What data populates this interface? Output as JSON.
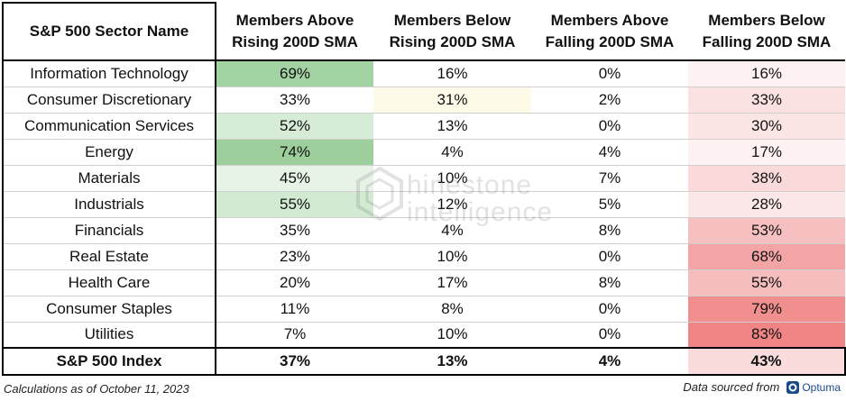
{
  "table": {
    "headers": [
      "S&P 500 Sector Name",
      "Members Above Rising 200D SMA",
      "Members Below Rising 200D SMA",
      "Members Above Falling 200D SMA",
      "Members Below Falling 200D SMA"
    ],
    "rows": [
      {
        "sector": "Information Technology",
        "v": [
          "69%",
          "16%",
          "0%",
          "16%"
        ],
        "bg": [
          "#a3d3a3",
          "#ffffff",
          "#ffffff",
          "#fdf2f2"
        ]
      },
      {
        "sector": "Consumer Discretionary",
        "v": [
          "33%",
          "31%",
          "2%",
          "33%"
        ],
        "bg": [
          "#ffffff",
          "#fdfbe8",
          "#ffffff",
          "#fbe1e1"
        ]
      },
      {
        "sector": "Communication Services",
        "v": [
          "52%",
          "13%",
          "0%",
          "30%"
        ],
        "bg": [
          "#d7ecd7",
          "#ffffff",
          "#ffffff",
          "#fbe5e5"
        ]
      },
      {
        "sector": "Energy",
        "v": [
          "74%",
          "4%",
          "4%",
          "17%"
        ],
        "bg": [
          "#9ccf9c",
          "#ffffff",
          "#ffffff",
          "#fdf1f1"
        ]
      },
      {
        "sector": "Materials",
        "v": [
          "45%",
          "10%",
          "7%",
          "38%"
        ],
        "bg": [
          "#e7f3e7",
          "#ffffff",
          "#ffffff",
          "#f9d9d9"
        ]
      },
      {
        "sector": "Industrials",
        "v": [
          "55%",
          "12%",
          "5%",
          "28%"
        ],
        "bg": [
          "#d2ead2",
          "#ffffff",
          "#ffffff",
          "#fbe7e7"
        ]
      },
      {
        "sector": "Financials",
        "v": [
          "35%",
          "4%",
          "8%",
          "53%"
        ],
        "bg": [
          "#ffffff",
          "#ffffff",
          "#ffffff",
          "#f6c0c0"
        ]
      },
      {
        "sector": "Real Estate",
        "v": [
          "23%",
          "10%",
          "0%",
          "68%"
        ],
        "bg": [
          "#ffffff",
          "#ffffff",
          "#ffffff",
          "#f3a5a5"
        ]
      },
      {
        "sector": "Health Care",
        "v": [
          "20%",
          "17%",
          "8%",
          "55%"
        ],
        "bg": [
          "#ffffff",
          "#ffffff",
          "#ffffff",
          "#f5bdbd"
        ]
      },
      {
        "sector": "Consumer Staples",
        "v": [
          "11%",
          "8%",
          "0%",
          "79%"
        ],
        "bg": [
          "#ffffff",
          "#ffffff",
          "#ffffff",
          "#f18f8f"
        ]
      },
      {
        "sector": "Utilities",
        "v": [
          "7%",
          "10%",
          "0%",
          "83%"
        ],
        "bg": [
          "#ffffff",
          "#ffffff",
          "#ffffff",
          "#f08585"
        ]
      }
    ],
    "total": {
      "sector": "S&P 500 Index",
      "v": [
        "37%",
        "13%",
        "4%",
        "43%"
      ],
      "bg": [
        "#ffffff",
        "#ffffff",
        "#ffffff",
        "#fadcdc"
      ]
    }
  },
  "watermark": "hinestone intelligence",
  "footer": {
    "note": "Calculations as of October 11, 2023",
    "source": "Data sourced from",
    "brand": "Optuma"
  }
}
